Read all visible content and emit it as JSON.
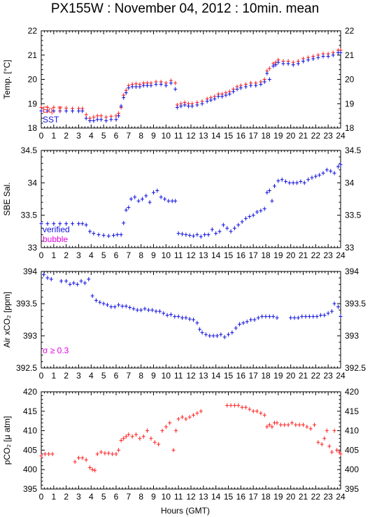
{
  "title": "PX155W : November 04, 2012 : 10min. mean",
  "colors": {
    "red": "#ff2020",
    "blue": "#1010e0",
    "magenta": "#e000e0",
    "axis": "#000000"
  },
  "chart_data": [
    {
      "type": "scatter",
      "ylabel": "Temp. [°C]",
      "ylim": [
        18,
        22
      ],
      "yticks": [
        "18",
        "19",
        "20",
        "21",
        "22"
      ],
      "xlim": [
        0,
        24
      ],
      "xticks": [
        "0",
        "1",
        "2",
        "3",
        "4",
        "5",
        "6",
        "7",
        "8",
        "9",
        "10",
        "11",
        "12",
        "13",
        "14",
        "15",
        "16",
        "17",
        "18",
        "19",
        "20",
        "21",
        "22",
        "23",
        "24"
      ],
      "legend": [
        "Eq. T",
        "SST"
      ],
      "series": [
        {
          "name": "Eq. T",
          "color": "red",
          "x": [
            0.0,
            0.5,
            1.0,
            1.5,
            2.0,
            2.5,
            3.0,
            3.3,
            3.6,
            3.9,
            4.2,
            4.5,
            4.8,
            5.2,
            5.6,
            6.0,
            6.2,
            6.4,
            6.6,
            6.8,
            7.0,
            7.3,
            7.6,
            7.9,
            8.2,
            8.5,
            8.8,
            9.2,
            9.6,
            10.0,
            10.4,
            10.75,
            10.9,
            11.2,
            11.5,
            11.8,
            12.1,
            12.5,
            12.9,
            13.3,
            13.6,
            13.9,
            14.2,
            14.5,
            14.8,
            15.1,
            15.4,
            15.7,
            16.0,
            16.4,
            16.8,
            17.2,
            17.6,
            17.9,
            18.1,
            18.3,
            18.6,
            18.8,
            19.0,
            19.4,
            19.8,
            20.2,
            20.6,
            21.0,
            21.4,
            21.8,
            22.2,
            22.6,
            23.0,
            23.4,
            23.8,
            24.0
          ],
          "y": [
            18.85,
            18.85,
            18.85,
            18.82,
            18.82,
            18.8,
            18.8,
            18.8,
            18.55,
            18.4,
            18.45,
            18.5,
            18.5,
            18.45,
            18.48,
            18.5,
            18.6,
            18.85,
            19.35,
            19.55,
            19.75,
            19.8,
            19.82,
            19.8,
            19.85,
            19.85,
            19.85,
            19.9,
            19.9,
            19.85,
            19.95,
            19.85,
            18.95,
            19.0,
            19.05,
            19.0,
            19.0,
            19.05,
            19.1,
            19.2,
            19.25,
            19.3,
            19.4,
            19.4,
            19.45,
            19.5,
            19.6,
            19.7,
            19.75,
            19.8,
            19.85,
            19.85,
            19.9,
            20.0,
            20.35,
            20.45,
            20.65,
            20.7,
            20.8,
            20.75,
            20.75,
            20.7,
            20.75,
            20.85,
            20.9,
            20.95,
            21.0,
            21.05,
            21.05,
            21.1,
            21.2,
            21.2
          ]
        },
        {
          "name": "SST",
          "color": "blue",
          "x": [
            0.0,
            0.5,
            1.0,
            1.5,
            2.0,
            2.5,
            3.0,
            3.3,
            3.6,
            3.9,
            4.2,
            4.5,
            4.8,
            5.2,
            5.6,
            6.0,
            6.2,
            6.4,
            6.6,
            6.8,
            7.0,
            7.3,
            7.6,
            7.9,
            8.2,
            8.5,
            8.8,
            9.2,
            9.6,
            10.0,
            10.4,
            10.75,
            10.9,
            11.2,
            11.5,
            11.8,
            12.1,
            12.5,
            12.9,
            13.3,
            13.6,
            13.9,
            14.2,
            14.5,
            14.8,
            15.1,
            15.4,
            15.7,
            16.0,
            16.4,
            16.8,
            17.2,
            17.6,
            17.9,
            18.1,
            18.3,
            18.6,
            18.8,
            19.0,
            19.4,
            19.8,
            20.2,
            20.6,
            21.0,
            21.4,
            21.8,
            22.2,
            22.6,
            23.0,
            23.4,
            23.8,
            24.0
          ],
          "y": [
            18.7,
            18.7,
            18.7,
            18.7,
            18.7,
            18.7,
            18.7,
            18.7,
            18.4,
            18.3,
            18.3,
            18.35,
            18.35,
            18.3,
            18.35,
            18.35,
            18.5,
            18.9,
            19.25,
            19.45,
            19.65,
            19.7,
            19.7,
            19.7,
            19.75,
            19.75,
            19.75,
            19.8,
            19.8,
            19.75,
            19.85,
            19.6,
            18.85,
            18.9,
            18.95,
            18.9,
            18.9,
            18.95,
            19.0,
            19.1,
            19.15,
            19.2,
            19.3,
            19.3,
            19.35,
            19.4,
            19.5,
            19.6,
            19.65,
            19.7,
            19.75,
            19.75,
            19.8,
            19.9,
            20.25,
            20.0,
            20.55,
            20.6,
            20.7,
            20.65,
            20.65,
            20.6,
            20.65,
            20.75,
            20.8,
            20.85,
            20.9,
            20.95,
            20.95,
            21.0,
            21.1,
            21.1
          ]
        }
      ]
    },
    {
      "type": "scatter",
      "ylabel": "SBE Sal.",
      "ylim": [
        33,
        34.5
      ],
      "yticks": [
        "33",
        "33.5",
        "34",
        "34.5"
      ],
      "xlim": [
        0,
        24
      ],
      "xticks": [
        "0",
        "1",
        "2",
        "3",
        "4",
        "5",
        "6",
        "7",
        "8",
        "9",
        "10",
        "11",
        "12",
        "13",
        "14",
        "15",
        "16",
        "17",
        "18",
        "19",
        "20",
        "21",
        "22",
        "23",
        "24"
      ],
      "legend": [
        "verified",
        "bubble"
      ],
      "series": [
        {
          "name": "verified",
          "color": "blue",
          "x": [
            0.0,
            0.5,
            1.0,
            1.5,
            2.0,
            2.5,
            3.0,
            3.3,
            3.6,
            3.9,
            4.2,
            4.6,
            5.0,
            5.4,
            5.8,
            6.1,
            6.4,
            6.6,
            6.8,
            7.0,
            7.2,
            7.5,
            7.8,
            8.1,
            8.4,
            8.7,
            9.0,
            9.3,
            9.6,
            9.9,
            10.2,
            10.5,
            10.75,
            11.0,
            11.3,
            11.6,
            11.9,
            12.2,
            12.5,
            12.8,
            13.1,
            13.4,
            13.7,
            14.0,
            14.3,
            14.6,
            14.9,
            15.2,
            15.5,
            15.8,
            16.1,
            16.4,
            16.7,
            17.0,
            17.3,
            17.6,
            17.9,
            18.1,
            18.3,
            18.5,
            18.7,
            19.0,
            19.3,
            19.6,
            19.9,
            20.2,
            20.5,
            20.8,
            21.1,
            21.4,
            21.7,
            22.0,
            22.3,
            22.6,
            22.9,
            23.2,
            23.5,
            23.8,
            24.0
          ],
          "y": [
            33.37,
            33.37,
            33.37,
            33.37,
            33.37,
            33.37,
            33.37,
            33.37,
            33.35,
            33.25,
            33.22,
            33.2,
            33.19,
            33.18,
            33.19,
            33.2,
            33.2,
            33.38,
            33.58,
            33.62,
            33.75,
            33.78,
            33.72,
            33.75,
            33.8,
            33.7,
            33.85,
            33.88,
            33.78,
            33.75,
            33.72,
            33.72,
            33.72,
            33.22,
            33.21,
            33.2,
            33.19,
            33.18,
            33.2,
            33.17,
            33.2,
            33.2,
            33.28,
            33.22,
            33.25,
            33.35,
            33.3,
            33.25,
            33.3,
            33.35,
            33.4,
            33.45,
            33.48,
            33.5,
            33.55,
            33.57,
            33.6,
            33.85,
            33.88,
            33.72,
            33.95,
            34.03,
            34.05,
            34.02,
            34.0,
            34.0,
            34.0,
            34.02,
            34.0,
            34.05,
            34.08,
            34.1,
            34.12,
            34.15,
            34.2,
            34.18,
            34.15,
            34.25,
            34.28
          ]
        }
      ]
    },
    {
      "type": "scatter",
      "ylabel": "Air xCO₂ [ppm]",
      "ylim": [
        392.5,
        394
      ],
      "yticks": [
        "392.5",
        "393",
        "393.5",
        "394"
      ],
      "xlim": [
        0,
        24
      ],
      "xticks": [
        "0",
        "1",
        "2",
        "3",
        "4",
        "5",
        "6",
        "7",
        "8",
        "9",
        "10",
        "11",
        "12",
        "13",
        "14",
        "15",
        "16",
        "17",
        "18",
        "19",
        "20",
        "21",
        "22",
        "23",
        "24"
      ],
      "legend": [
        "σ ≥ 0.3"
      ],
      "series": [
        {
          "name": "Air xCO2",
          "color": "blue",
          "x": [
            0.2,
            0.5,
            0.8,
            1.6,
            2.0,
            2.3,
            2.6,
            2.9,
            3.2,
            3.5,
            3.8,
            4.1,
            4.4,
            4.7,
            5.0,
            5.3,
            5.6,
            5.9,
            6.2,
            6.5,
            6.8,
            7.1,
            7.4,
            7.7,
            8.0,
            8.3,
            8.6,
            8.9,
            9.2,
            9.5,
            9.8,
            10.1,
            10.4,
            10.7,
            11.0,
            11.3,
            11.6,
            11.9,
            12.2,
            12.5,
            12.7,
            12.9,
            13.2,
            13.5,
            13.8,
            14.1,
            14.4,
            14.7,
            15.0,
            15.3,
            15.6,
            15.9,
            16.2,
            16.5,
            16.8,
            17.1,
            17.4,
            17.7,
            18.0,
            18.3,
            18.6,
            18.9,
            20.0,
            20.3,
            20.6,
            20.9,
            21.2,
            21.5,
            21.8,
            22.1,
            22.4,
            22.7,
            23.0,
            23.3,
            23.5,
            23.8,
            24.0
          ],
          "y": [
            393.95,
            393.9,
            393.88,
            393.85,
            393.85,
            393.8,
            393.82,
            393.8,
            393.85,
            393.82,
            393.88,
            393.62,
            393.55,
            393.52,
            393.5,
            393.48,
            393.45,
            393.45,
            393.48,
            393.46,
            393.46,
            393.44,
            393.42,
            393.4,
            393.4,
            393.42,
            393.4,
            393.4,
            393.38,
            393.38,
            393.35,
            393.32,
            393.33,
            393.3,
            393.3,
            393.28,
            393.28,
            393.26,
            393.25,
            393.2,
            393.1,
            393.05,
            393.02,
            393.0,
            393.0,
            393.0,
            393.02,
            392.98,
            393.02,
            393.05,
            393.12,
            393.18,
            393.2,
            393.22,
            393.25,
            393.25,
            393.28,
            393.3,
            393.3,
            393.3,
            393.3,
            393.28,
            393.28,
            393.28,
            393.28,
            393.3,
            393.3,
            393.3,
            393.3,
            393.3,
            393.32,
            393.32,
            393.35,
            393.38,
            393.5,
            393.45,
            393.3
          ]
        }
      ]
    },
    {
      "type": "scatter",
      "ylabel": "pCO₂ [μ atm]",
      "ylim": [
        395,
        420
      ],
      "yticks": [
        "395",
        "400",
        "405",
        "410",
        "415",
        "420"
      ],
      "xlim": [
        0,
        24
      ],
      "xticks": [
        "0",
        "1",
        "2",
        "3",
        "4",
        "5",
        "6",
        "7",
        "8",
        "9",
        "10",
        "11",
        "12",
        "13",
        "14",
        "15",
        "16",
        "17",
        "18",
        "19",
        "20",
        "21",
        "22",
        "23",
        "24"
      ],
      "xlabel": "Hours (GMT)",
      "series": [
        {
          "name": "pCO2",
          "color": "red",
          "x": [
            0.0,
            0.3,
            0.6,
            0.9,
            2.7,
            3.0,
            3.3,
            3.6,
            3.9,
            4.1,
            4.3,
            4.5,
            4.8,
            5.1,
            5.4,
            5.7,
            6.0,
            6.2,
            6.4,
            6.6,
            6.8,
            7.0,
            7.3,
            7.6,
            7.9,
            8.2,
            8.5,
            8.8,
            9.1,
            9.4,
            9.7,
            10.0,
            10.3,
            10.6,
            10.8,
            11.0,
            11.3,
            11.6,
            11.9,
            12.2,
            12.5,
            12.8,
            14.9,
            15.2,
            15.5,
            15.8,
            16.1,
            16.4,
            16.7,
            17.0,
            17.3,
            17.6,
            17.9,
            18.1,
            18.3,
            18.5,
            18.7,
            18.9,
            19.2,
            19.5,
            19.8,
            20.1,
            20.4,
            20.7,
            21.0,
            21.3,
            21.6,
            21.9,
            22.2,
            22.5,
            22.7,
            22.9,
            23.1,
            23.3,
            23.5,
            23.7,
            23.9,
            24.0
          ],
          "y": [
            403.5,
            404,
            404,
            404,
            402,
            403,
            403,
            402.5,
            400.5,
            400,
            399.8,
            404,
            404.5,
            404.2,
            404.2,
            404,
            404,
            405,
            407.5,
            408,
            408.5,
            409,
            408.5,
            409,
            408,
            408.5,
            410,
            408,
            407,
            406.5,
            410,
            411,
            412,
            405,
            410,
            413,
            413.5,
            413,
            413.5,
            414,
            414.5,
            415,
            416.5,
            416.5,
            416.5,
            416.5,
            416,
            416,
            415.5,
            415,
            415,
            414.5,
            414,
            411,
            411.5,
            411,
            412,
            412,
            411.5,
            411.5,
            411.5,
            412,
            411.5,
            411.5,
            411.5,
            411,
            410.5,
            411.5,
            407,
            406.5,
            408,
            410,
            406,
            404.5,
            410,
            405,
            404.5,
            404
          ]
        }
      ]
    }
  ]
}
